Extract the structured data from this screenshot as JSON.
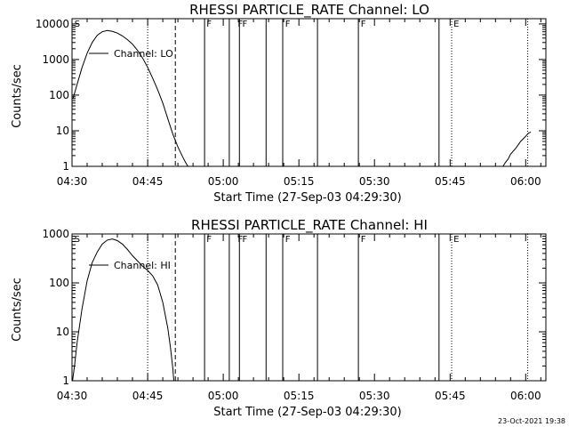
{
  "chart_data": [
    {
      "type": "line",
      "title": "RHESSI PARTICLE_RATE Channel: LO",
      "xlabel": "Start Time (27-Sep-03 04:29:30)",
      "ylabel": "Counts/sec",
      "xlim": [
        0,
        94
      ],
      "ylim": [
        1,
        14000
      ],
      "yscale": "log",
      "x_ticks": [
        {
          "v": 0,
          "label": "04:30"
        },
        {
          "v": 15,
          "label": "04:45"
        },
        {
          "v": 30,
          "label": "05:00"
        },
        {
          "v": 45,
          "label": "05:15"
        },
        {
          "v": 60,
          "label": "05:30"
        },
        {
          "v": 75,
          "label": "05:45"
        },
        {
          "v": 90,
          "label": "06:00"
        }
      ],
      "y_ticks": [
        {
          "v": 1,
          "label": "1"
        },
        {
          "v": 10,
          "label": "10"
        },
        {
          "v": 100,
          "label": "100"
        },
        {
          "v": 1000,
          "label": "1000"
        },
        {
          "v": 10000,
          "label": "10000"
        }
      ],
      "legend": {
        "label": "Channel: LO",
        "placement": "upper-left"
      },
      "series": [
        {
          "name": "Channel: LO",
          "points": [
            [
              0.2,
              80
            ],
            [
              1,
              200
            ],
            [
              2,
              600
            ],
            [
              3,
              1500
            ],
            [
              4,
              3000
            ],
            [
              5,
              4800
            ],
            [
              6,
              6000
            ],
            [
              7,
              6500
            ],
            [
              8,
              6200
            ],
            [
              9,
              5500
            ],
            [
              10,
              4600
            ],
            [
              11,
              3600
            ],
            [
              12,
              2700
            ],
            [
              13,
              1800
            ],
            [
              14,
              1100
            ],
            [
              15,
              600
            ],
            [
              16,
              300
            ],
            [
              17,
              140
            ],
            [
              18,
              60
            ],
            [
              19,
              22
            ],
            [
              20,
              8
            ],
            [
              21,
              3.5
            ],
            [
              22,
              1.8
            ],
            [
              22.5,
              1.3
            ],
            [
              23,
              1.0
            ]
          ]
        },
        {
          "name": "Channel: LO",
          "points": [
            [
              85.5,
              1.0
            ],
            [
              86,
              1.3
            ],
            [
              86.5,
              1.6
            ],
            [
              87,
              2.2
            ],
            [
              88,
              3.2
            ],
            [
              89,
              5
            ],
            [
              90,
              7
            ],
            [
              90.5,
              8.5
            ],
            [
              91,
              9.2
            ]
          ]
        }
      ],
      "vlines": [
        {
          "x": 15,
          "style": "dotted"
        },
        {
          "x": 20.5,
          "style": "dashed"
        },
        {
          "x": 26.3,
          "style": "solid"
        },
        {
          "x": 31.2,
          "style": "solid"
        },
        {
          "x": 33.2,
          "style": "solid"
        },
        {
          "x": 38.5,
          "style": "solid"
        },
        {
          "x": 41.8,
          "style": "solid"
        },
        {
          "x": 48.7,
          "style": "solid"
        },
        {
          "x": 56.8,
          "style": "solid"
        },
        {
          "x": 72.8,
          "style": "solid"
        },
        {
          "x": 75.3,
          "style": "dotted"
        },
        {
          "x": 90.4,
          "style": "dotted"
        }
      ],
      "flags": [
        {
          "x": 0.3,
          "label": "S"
        },
        {
          "x": 26.5,
          "label": "F"
        },
        {
          "x": 32.7,
          "label": "F"
        },
        {
          "x": 33.6,
          "label": "F"
        },
        {
          "x": 42.1,
          "label": "F"
        },
        {
          "x": 57.1,
          "label": "F"
        },
        {
          "x": 75.5,
          "label": "E"
        }
      ]
    },
    {
      "type": "line",
      "title": "RHESSI PARTICLE_RATE Channel: HI",
      "xlabel": "Start Time (27-Sep-03 04:29:30)",
      "ylabel": "Counts/sec",
      "xlim": [
        0,
        94
      ],
      "ylim": [
        1,
        1000
      ],
      "yscale": "log",
      "x_ticks": [
        {
          "v": 0,
          "label": "04:30"
        },
        {
          "v": 15,
          "label": "04:45"
        },
        {
          "v": 30,
          "label": "05:00"
        },
        {
          "v": 45,
          "label": "05:15"
        },
        {
          "v": 60,
          "label": "05:30"
        },
        {
          "v": 75,
          "label": "05:45"
        },
        {
          "v": 90,
          "label": "06:00"
        }
      ],
      "y_ticks": [
        {
          "v": 1,
          "label": "1"
        },
        {
          "v": 10,
          "label": "10"
        },
        {
          "v": 100,
          "label": "100"
        },
        {
          "v": 1000,
          "label": "1000"
        }
      ],
      "legend": {
        "label": "Channel: HI",
        "placement": "upper-left"
      },
      "series": [
        {
          "name": "Channel: HI",
          "points": [
            [
              0.1,
              1.0
            ],
            [
              0.5,
              2
            ],
            [
              1,
              6
            ],
            [
              2,
              30
            ],
            [
              3,
              110
            ],
            [
              4,
              260
            ],
            [
              5,
              430
            ],
            [
              6,
              620
            ],
            [
              7,
              750
            ],
            [
              8,
              790
            ],
            [
              9,
              730
            ],
            [
              10,
              620
            ],
            [
              11,
              480
            ],
            [
              12,
              360
            ],
            [
              13,
              280
            ],
            [
              14,
              220
            ],
            [
              15,
              180
            ],
            [
              16,
              140
            ],
            [
              17,
              90
            ],
            [
              18,
              40
            ],
            [
              19,
              12
            ],
            [
              19.5,
              5
            ],
            [
              20,
              1.8
            ],
            [
              20.2,
              1.0
            ]
          ]
        }
      ],
      "vlines": [
        {
          "x": 15,
          "style": "dotted"
        },
        {
          "x": 20.5,
          "style": "dashed"
        },
        {
          "x": 26.3,
          "style": "solid"
        },
        {
          "x": 31.2,
          "style": "solid"
        },
        {
          "x": 33.2,
          "style": "solid"
        },
        {
          "x": 38.5,
          "style": "solid"
        },
        {
          "x": 41.8,
          "style": "solid"
        },
        {
          "x": 48.7,
          "style": "solid"
        },
        {
          "x": 56.8,
          "style": "solid"
        },
        {
          "x": 72.8,
          "style": "solid"
        },
        {
          "x": 75.3,
          "style": "dotted"
        },
        {
          "x": 90.4,
          "style": "dotted"
        }
      ],
      "flags": [
        {
          "x": 0.3,
          "label": "S"
        },
        {
          "x": 26.5,
          "label": "F"
        },
        {
          "x": 32.7,
          "label": "F"
        },
        {
          "x": 33.6,
          "label": "F"
        },
        {
          "x": 42.1,
          "label": "F"
        },
        {
          "x": 57.1,
          "label": "F"
        },
        {
          "x": 75.5,
          "label": "E"
        }
      ]
    }
  ],
  "footer": {
    "timestamp": "23-Oct-2021 19:38"
  }
}
